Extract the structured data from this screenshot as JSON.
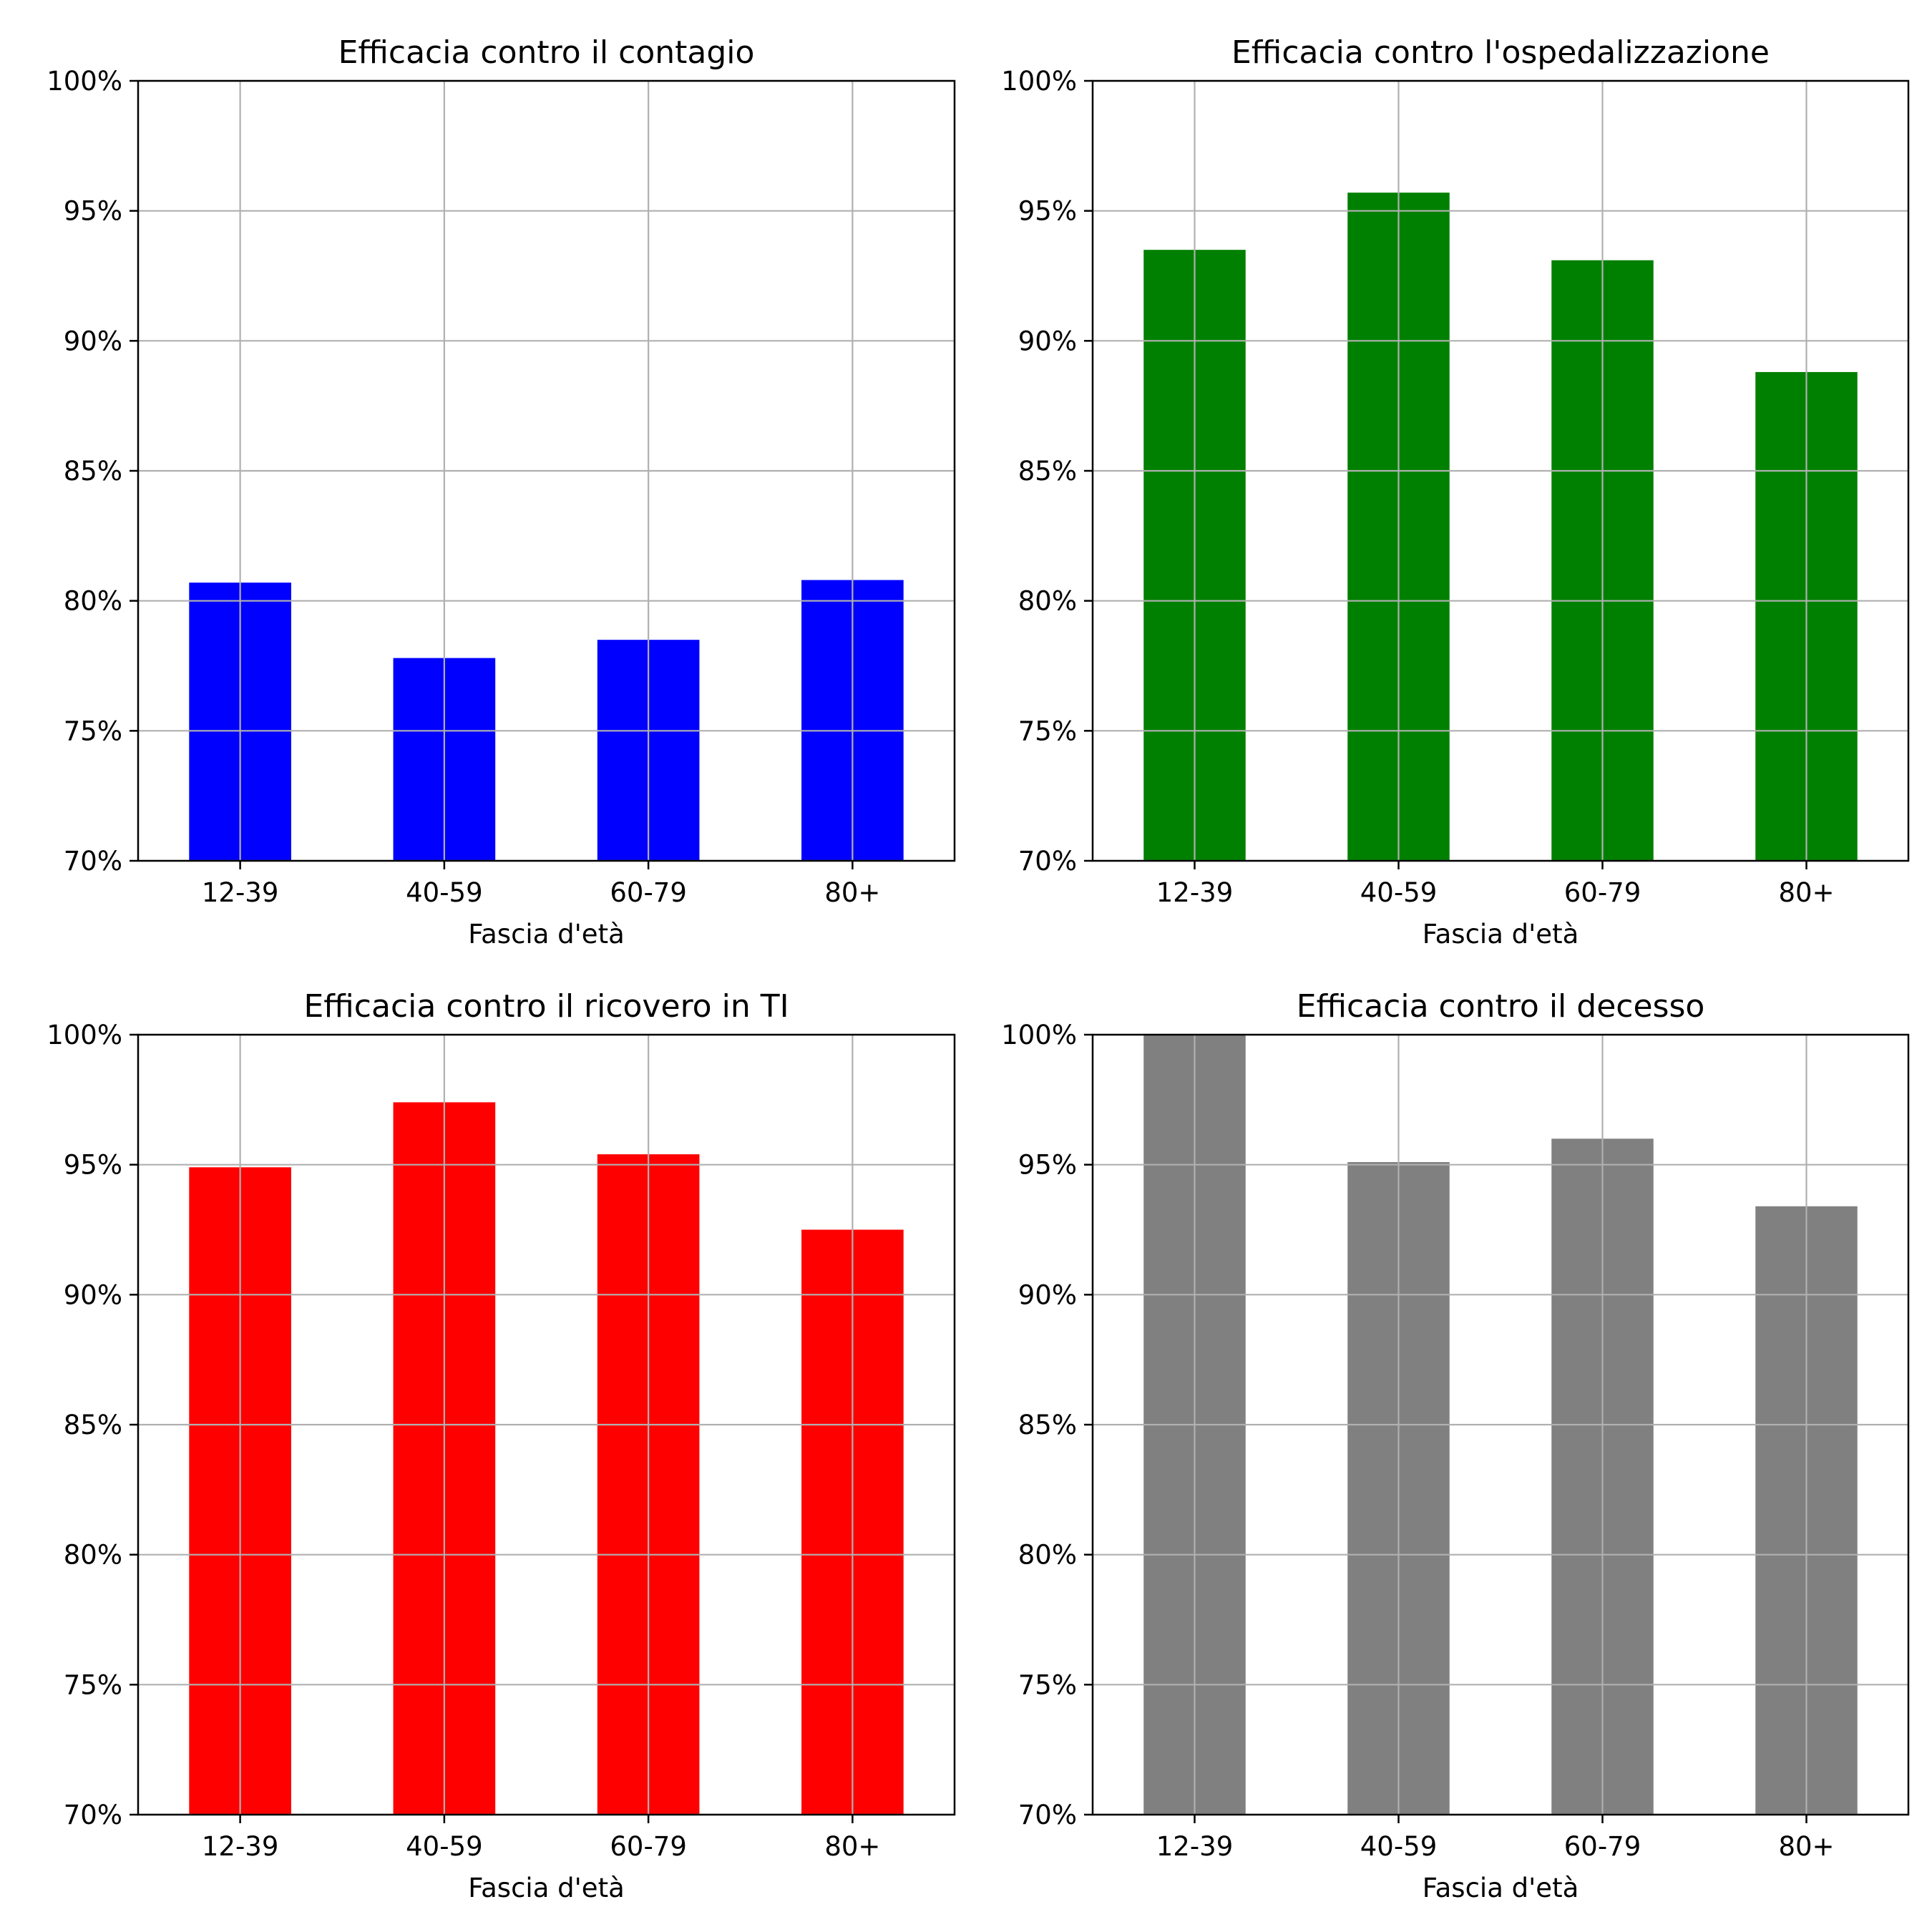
{
  "chart_data": [
    {
      "type": "bar",
      "title": "Efficacia contro il contagio",
      "xlabel": "Fascia d'età",
      "ylabel": "",
      "categories": [
        "12-39",
        "40-59",
        "60-79",
        "80+"
      ],
      "values": [
        80.7,
        77.8,
        78.5,
        80.8
      ],
      "ylim": [
        70,
        100
      ],
      "yticks": [
        "70%",
        "75%",
        "80%",
        "85%",
        "90%",
        "95%",
        "100%"
      ],
      "color": "#0000ff",
      "grid": true
    },
    {
      "type": "bar",
      "title": "Efficacia contro l'ospedalizzazione",
      "xlabel": "Fascia d'età",
      "ylabel": "",
      "categories": [
        "12-39",
        "40-59",
        "60-79",
        "80+"
      ],
      "values": [
        93.5,
        95.7,
        93.1,
        88.8
      ],
      "ylim": [
        70,
        100
      ],
      "yticks": [
        "70%",
        "75%",
        "80%",
        "85%",
        "90%",
        "95%",
        "100%"
      ],
      "color": "#008000",
      "grid": true
    },
    {
      "type": "bar",
      "title": "Efficacia contro il ricovero in TI",
      "xlabel": "Fascia d'età",
      "ylabel": "",
      "categories": [
        "12-39",
        "40-59",
        "60-79",
        "80+"
      ],
      "values": [
        94.9,
        97.4,
        95.4,
        92.5
      ],
      "ylim": [
        70,
        100
      ],
      "yticks": [
        "70%",
        "75%",
        "80%",
        "85%",
        "90%",
        "95%",
        "100%"
      ],
      "color": "#ff0000",
      "grid": true
    },
    {
      "type": "bar",
      "title": "Efficacia contro il decesso",
      "xlabel": "Fascia d'età",
      "ylabel": "",
      "categories": [
        "12-39",
        "40-59",
        "60-79",
        "80+"
      ],
      "values": [
        100,
        95.1,
        96.0,
        93.4
      ],
      "ylim": [
        70,
        100
      ],
      "yticks": [
        "70%",
        "75%",
        "80%",
        "85%",
        "90%",
        "95%",
        "100%"
      ],
      "color": "#808080",
      "grid": true
    }
  ]
}
